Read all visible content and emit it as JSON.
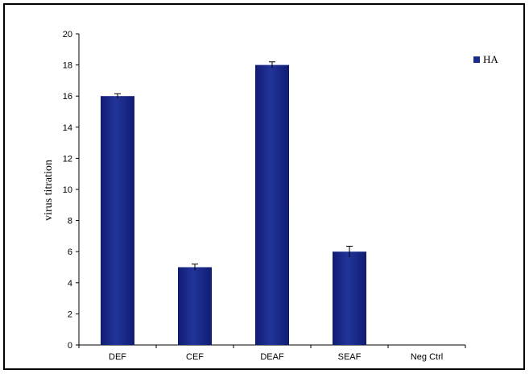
{
  "chart_data": {
    "type": "bar",
    "title": "",
    "xlabel": "",
    "ylabel": "virus titration",
    "categories": [
      "DEF",
      "CEF",
      "DEAF",
      "SEAF",
      "Neg Ctrl"
    ],
    "series": [
      {
        "name": "HA",
        "values": [
          16,
          5,
          18,
          6,
          0
        ],
        "errors": [
          0.15,
          0.2,
          0.2,
          0.35,
          0
        ]
      }
    ],
    "ylim": [
      0,
      20
    ],
    "yticks": [
      0,
      2,
      4,
      6,
      8,
      10,
      12,
      14,
      16,
      18,
      20
    ],
    "grid": false,
    "legend_position": "top-right",
    "colors": {
      "bar": "#1a2a8a",
      "bar_dark": "#0f1a6a",
      "axis": "#000000"
    }
  }
}
